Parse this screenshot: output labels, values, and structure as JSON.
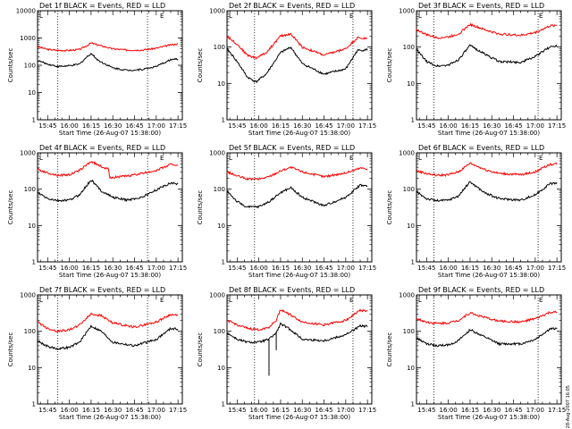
{
  "figure": {
    "credit": "28-Aug-2007 16:05",
    "colors": {
      "events": "#000000",
      "lld": "#ff0000",
      "axes": "#000000",
      "reference_line": "#000000"
    }
  },
  "chart_data": [
    {
      "type": "line",
      "title": "Det 1f BLACK = Events, RED = LLD",
      "xlabel": "Start Time (26-Aug-07 15:38:00)",
      "ylabel": "Counts/sec",
      "xticks": [
        "15:45",
        "16:00",
        "16:15",
        "16:30",
        "16:45",
        "17:00",
        "17:15"
      ],
      "yticks": [
        "1",
        "10",
        "100",
        "1000",
        "10000"
      ],
      "ylim": [
        1,
        10000
      ],
      "yscale": "log",
      "xlim": [
        "15:38",
        "17:18"
      ],
      "reference_lines": [
        "15:52",
        "16:54"
      ],
      "corner_marks": [
        "L",
        "E"
      ],
      "series": [
        {
          "name": "LLD",
          "color": "#ff0000",
          "x": [
            "15:38",
            "15:45",
            "15:52",
            "16:00",
            "16:07",
            "16:12",
            "16:15",
            "16:20",
            "16:30",
            "16:40",
            "16:50",
            "17:00",
            "17:10",
            "17:15"
          ],
          "values": [
            480,
            380,
            350,
            350,
            380,
            520,
            650,
            550,
            400,
            360,
            360,
            420,
            560,
            600
          ]
        },
        {
          "name": "Events",
          "color": "#000000",
          "x": [
            "15:38",
            "15:45",
            "15:52",
            "16:00",
            "16:07",
            "16:12",
            "16:15",
            "16:20",
            "16:30",
            "16:40",
            "16:50",
            "17:00",
            "17:10",
            "17:15"
          ],
          "values": [
            150,
            110,
            90,
            95,
            110,
            200,
            270,
            150,
            80,
            65,
            70,
            90,
            160,
            170
          ]
        }
      ]
    },
    {
      "type": "line",
      "title": "Det 2f BLACK = Events, RED = LLD",
      "xlabel": "Start Time (26-Aug-07 15:38:00)",
      "ylabel": "Counts/sec",
      "xticks": [
        "15:45",
        "16:00",
        "16:15",
        "16:30",
        "16:45",
        "17:00",
        "17:15"
      ],
      "yticks": [
        "1",
        "10",
        "100",
        "1000"
      ],
      "ylim": [
        1,
        1000
      ],
      "yscale": "log",
      "xlim": [
        "15:38",
        "17:18"
      ],
      "reference_lines": [
        "15:57",
        "17:05"
      ],
      "corner_marks": [
        "L",
        "E"
      ],
      "series": [
        {
          "name": "LLD",
          "color": "#ff0000",
          "x": [
            "15:38",
            "15:45",
            "15:52",
            "15:58",
            "16:05",
            "16:15",
            "16:22",
            "16:30",
            "16:45",
            "17:00",
            "17:08",
            "17:15"
          ],
          "values": [
            200,
            120,
            60,
            50,
            70,
            200,
            230,
            100,
            60,
            90,
            180,
            170
          ]
        },
        {
          "name": "Events",
          "color": "#000000",
          "x": [
            "15:38",
            "15:45",
            "15:52",
            "15:58",
            "16:05",
            "16:15",
            "16:22",
            "16:30",
            "16:45",
            "17:00",
            "17:08",
            "17:15"
          ],
          "values": [
            90,
            40,
            15,
            11,
            18,
            70,
            100,
            35,
            18,
            25,
            80,
            85
          ]
        }
      ]
    },
    {
      "type": "line",
      "title": "Det 3f BLACK = Events, RED = LLD",
      "xlabel": "Start Time (26-Aug-07 15:38:00)",
      "ylabel": "Counts/sec",
      "xticks": [
        "15:45",
        "16:00",
        "16:15",
        "16:30",
        "16:45",
        "17:00",
        "17:15"
      ],
      "yticks": [
        "1",
        "10",
        "100",
        "1000"
      ],
      "ylim": [
        1,
        1000
      ],
      "yscale": "log",
      "xlim": [
        "15:38",
        "17:18"
      ],
      "reference_lines": [
        "15:50",
        "17:02"
      ],
      "corner_marks": [
        "L",
        "E"
      ],
      "series": [
        {
          "name": "LLD",
          "color": "#ff0000",
          "x": [
            "15:38",
            "15:45",
            "15:52",
            "16:00",
            "16:07",
            "16:15",
            "16:25",
            "16:35",
            "16:50",
            "17:00",
            "17:10",
            "17:15"
          ],
          "values": [
            300,
            220,
            180,
            190,
            230,
            420,
            300,
            230,
            210,
            250,
            380,
            400
          ]
        },
        {
          "name": "Events",
          "color": "#000000",
          "x": [
            "15:38",
            "15:45",
            "15:52",
            "16:00",
            "16:07",
            "16:15",
            "16:25",
            "16:35",
            "16:50",
            "17:00",
            "17:10",
            "17:15"
          ],
          "values": [
            85,
            40,
            30,
            32,
            45,
            110,
            65,
            40,
            38,
            55,
            100,
            110
          ]
        }
      ]
    },
    {
      "type": "line",
      "title": "Det 4f BLACK = Events, RED = LLD",
      "xlabel": "Start Time (26-Aug-07 15:38:00)",
      "ylabel": "Counts/sec",
      "xticks": [
        "15:45",
        "16:00",
        "16:15",
        "16:30",
        "16:45",
        "17:00",
        "17:15"
      ],
      "yticks": [
        "1",
        "10",
        "100",
        "1000"
      ],
      "ylim": [
        1,
        1000
      ],
      "yscale": "log",
      "xlim": [
        "15:38",
        "17:18"
      ],
      "reference_lines": [
        "15:52",
        "16:54"
      ],
      "corner_marks": [
        "L",
        "E"
      ],
      "series": [
        {
          "name": "LLD",
          "color": "#ff0000",
          "x": [
            "15:38",
            "15:45",
            "15:52",
            "16:00",
            "16:07",
            "16:15",
            "16:22",
            "16:27",
            "16:28",
            "16:40",
            "16:50",
            "17:00",
            "17:10",
            "17:15"
          ],
          "values": [
            350,
            280,
            240,
            250,
            330,
            580,
            420,
            350,
            210,
            230,
            270,
            330,
            480,
            470
          ]
        },
        {
          "name": "Events",
          "color": "#000000",
          "x": [
            "15:38",
            "15:45",
            "15:52",
            "16:00",
            "16:07",
            "16:15",
            "16:22",
            "16:30",
            "16:40",
            "16:50",
            "17:00",
            "17:10",
            "17:15"
          ],
          "values": [
            80,
            55,
            48,
            50,
            70,
            180,
            90,
            60,
            50,
            60,
            95,
            150,
            140
          ]
        }
      ]
    },
    {
      "type": "line",
      "title": "Det 5f BLACK = Events, RED = LLD",
      "xlabel": "Start Time (26-Aug-07 15:38:00)",
      "ylabel": "Counts/sec",
      "xticks": [
        "15:45",
        "16:00",
        "16:15",
        "16:30",
        "16:45",
        "17:00",
        "17:15"
      ],
      "yticks": [
        "1",
        "10",
        "100",
        "1000"
      ],
      "ylim": [
        1,
        1000
      ],
      "yscale": "log",
      "xlim": [
        "15:38",
        "17:18"
      ],
      "reference_lines": [
        "15:57",
        "17:05"
      ],
      "corner_marks": [
        "L",
        "E"
      ],
      "series": [
        {
          "name": "LLD",
          "color": "#ff0000",
          "x": [
            "15:38",
            "15:45",
            "15:52",
            "16:00",
            "16:07",
            "16:15",
            "16:22",
            "16:30",
            "16:45",
            "17:00",
            "17:10",
            "17:15"
          ],
          "values": [
            300,
            230,
            190,
            190,
            220,
            320,
            400,
            300,
            220,
            280,
            380,
            370
          ]
        },
        {
          "name": "Events",
          "color": "#000000",
          "x": [
            "15:38",
            "15:45",
            "15:52",
            "16:00",
            "16:07",
            "16:15",
            "16:22",
            "16:30",
            "16:45",
            "17:00",
            "17:10",
            "17:15"
          ],
          "values": [
            90,
            45,
            32,
            33,
            45,
            80,
            110,
            60,
            35,
            60,
            130,
            120
          ]
        }
      ]
    },
    {
      "type": "line",
      "title": "Det 6f BLACK = Events, RED = LLD",
      "xlabel": "Start Time (26-Aug-07 15:38:00)",
      "ylabel": "Counts/sec",
      "xticks": [
        "15:45",
        "16:00",
        "16:15",
        "16:30",
        "16:45",
        "17:00",
        "17:15"
      ],
      "yticks": [
        "1",
        "10",
        "100",
        "1000"
      ],
      "ylim": [
        1,
        1000
      ],
      "yscale": "log",
      "xlim": [
        "15:38",
        "17:18"
      ],
      "reference_lines": [
        "15:50",
        "17:02"
      ],
      "corner_marks": [
        "L",
        "E"
      ],
      "series": [
        {
          "name": "LLD",
          "color": "#ff0000",
          "x": [
            "15:38",
            "15:45",
            "15:52",
            "16:00",
            "16:07",
            "16:15",
            "16:25",
            "16:35",
            "16:50",
            "17:00",
            "17:10",
            "17:15"
          ],
          "values": [
            320,
            270,
            240,
            250,
            300,
            520,
            350,
            270,
            250,
            300,
            480,
            500
          ]
        },
        {
          "name": "Events",
          "color": "#000000",
          "x": [
            "15:38",
            "15:45",
            "15:52",
            "16:00",
            "16:07",
            "16:15",
            "16:25",
            "16:35",
            "16:50",
            "17:00",
            "17:10",
            "17:15"
          ],
          "values": [
            85,
            55,
            48,
            50,
            65,
            160,
            80,
            55,
            50,
            70,
            140,
            150
          ]
        }
      ]
    },
    {
      "type": "line",
      "title": "Det 7f BLACK = Events, RED = LLD",
      "xlabel": "Start Time (26-Aug-07 15:38:00)",
      "ylabel": "Counts/sec",
      "xticks": [
        "15:45",
        "16:00",
        "16:15",
        "16:30",
        "16:45",
        "17:00",
        "17:15"
      ],
      "yticks": [
        "1",
        "10",
        "100",
        "1000"
      ],
      "ylim": [
        1,
        1000
      ],
      "yscale": "log",
      "xlim": [
        "15:38",
        "17:18"
      ],
      "reference_lines": [
        "15:52",
        "16:54"
      ],
      "corner_marks": [
        "L",
        "E"
      ],
      "series": [
        {
          "name": "LLD",
          "color": "#ff0000",
          "x": [
            "15:38",
            "15:45",
            "15:52",
            "16:00",
            "16:07",
            "16:15",
            "16:22",
            "16:30",
            "16:45",
            "17:00",
            "17:10",
            "17:15"
          ],
          "values": [
            180,
            120,
            100,
            110,
            150,
            300,
            270,
            170,
            130,
            180,
            290,
            270
          ]
        },
        {
          "name": "Events",
          "color": "#000000",
          "x": [
            "15:38",
            "15:45",
            "15:52",
            "16:00",
            "16:07",
            "16:15",
            "16:22",
            "16:30",
            "16:45",
            "17:00",
            "17:10",
            "17:15"
          ],
          "values": [
            55,
            38,
            33,
            36,
            50,
            140,
            100,
            50,
            40,
            60,
            120,
            115
          ]
        }
      ]
    },
    {
      "type": "line",
      "title": "Det 8f BLACK = Events, RED = LLD",
      "xlabel": "Start Time (26-Aug-07 15:38:00)",
      "ylabel": "Counts/sec",
      "xticks": [
        "15:45",
        "16:00",
        "16:15",
        "16:30",
        "16:45",
        "17:00",
        "17:15"
      ],
      "yticks": [
        "1",
        "10",
        "100",
        "1000"
      ],
      "ylim": [
        1,
        1000
      ],
      "yscale": "log",
      "xlim": [
        "15:38",
        "17:18"
      ],
      "reference_lines": [
        "15:57",
        "17:05"
      ],
      "corner_marks": [
        "L",
        "E"
      ],
      "spikes": [
        {
          "x": "16:07",
          "value": 6
        },
        {
          "x": "16:12",
          "value": 30
        }
      ],
      "series": [
        {
          "name": "LLD",
          "color": "#ff0000",
          "x": [
            "15:38",
            "15:45",
            "15:52",
            "16:00",
            "16:07",
            "16:12",
            "16:15",
            "16:22",
            "16:30",
            "16:45",
            "17:00",
            "17:10",
            "17:15"
          ],
          "values": [
            200,
            150,
            120,
            110,
            130,
            200,
            400,
            280,
            180,
            150,
            200,
            380,
            360
          ]
        },
        {
          "name": "Events",
          "color": "#000000",
          "x": [
            "15:38",
            "15:45",
            "15:52",
            "16:00",
            "16:07",
            "16:12",
            "16:15",
            "16:22",
            "16:30",
            "16:45",
            "17:00",
            "17:10",
            "17:15"
          ],
          "values": [
            90,
            60,
            50,
            50,
            60,
            90,
            160,
            110,
            60,
            55,
            80,
            140,
            135
          ]
        }
      ]
    },
    {
      "type": "line",
      "title": "Det 9f BLACK = Events, RED = LLD",
      "xlabel": "Start Time (26-Aug-07 15:38:00)",
      "ylabel": "Counts/sec",
      "xticks": [
        "15:45",
        "16:00",
        "16:15",
        "16:30",
        "16:45",
        "17:00",
        "17:15"
      ],
      "yticks": [
        "1",
        "10",
        "100",
        "1000"
      ],
      "ylim": [
        1,
        1000
      ],
      "yscale": "log",
      "xlim": [
        "15:38",
        "17:18"
      ],
      "reference_lines": [
        "15:50",
        "17:02"
      ],
      "corner_marks": [
        "L",
        "E"
      ],
      "series": [
        {
          "name": "LLD",
          "color": "#ff0000",
          "x": [
            "15:38",
            "15:45",
            "15:52",
            "16:00",
            "16:07",
            "16:15",
            "16:25",
            "16:35",
            "16:50",
            "17:00",
            "17:10",
            "17:15"
          ],
          "values": [
            220,
            180,
            165,
            170,
            200,
            320,
            240,
            190,
            180,
            220,
            330,
            330
          ]
        },
        {
          "name": "Events",
          "color": "#000000",
          "x": [
            "15:38",
            "15:45",
            "15:52",
            "16:00",
            "16:07",
            "16:15",
            "16:25",
            "16:35",
            "16:50",
            "17:00",
            "17:10",
            "17:15"
          ],
          "values": [
            65,
            45,
            40,
            42,
            55,
            110,
            70,
            45,
            45,
            60,
            115,
            120
          ]
        }
      ]
    }
  ]
}
